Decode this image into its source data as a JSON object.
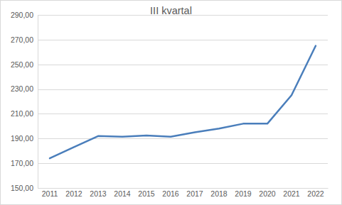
{
  "chart_data": {
    "type": "line",
    "title": "III kvartal",
    "categories": [
      "2011",
      "2012",
      "2013",
      "2014",
      "2015",
      "2016",
      "2017",
      "2018",
      "2019",
      "2020",
      "2021",
      "2022"
    ],
    "values": [
      174,
      183,
      192,
      191.5,
      192.5,
      191.5,
      195,
      198,
      202,
      202,
      225,
      265
    ],
    "color": "#4a7ebb",
    "ylim": [
      150,
      290
    ],
    "yticks": [
      {
        "value": 150,
        "label": "150,00"
      },
      {
        "value": 170,
        "label": "170,00"
      },
      {
        "value": 190,
        "label": "190,00"
      },
      {
        "value": 210,
        "label": "210,00"
      },
      {
        "value": 230,
        "label": "230,00"
      },
      {
        "value": 250,
        "label": "250,00"
      },
      {
        "value": 270,
        "label": "270,00"
      },
      {
        "value": 290,
        "label": "290,00"
      }
    ],
    "grid": true
  }
}
